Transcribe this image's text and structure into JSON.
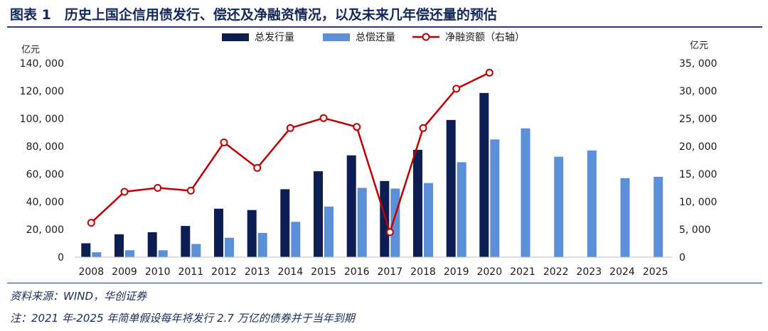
{
  "figure": {
    "title": "图表 1　历史上国企信用债发行、偿还及净融资情况，以及未来几年偿还量的预估",
    "source": "资料来源：WIND，华创证券",
    "note": "注：2021 年-2025 年简单假设每年将发行 2.7 万亿的债券并于当年到期"
  },
  "chart_data": {
    "type": "bar",
    "categories": [
      "2008",
      "2009",
      "2010",
      "2011",
      "2012",
      "2013",
      "2014",
      "2015",
      "2016",
      "2017",
      "2018",
      "2019",
      "2020",
      "2021",
      "2022",
      "2023",
      "2024",
      "2025"
    ],
    "series": [
      {
        "name": "总发行量",
        "type": "bar",
        "axis": "left",
        "color": "#0d1e52",
        "values": [
          10000,
          16500,
          18000,
          22500,
          35000,
          34000,
          49000,
          62000,
          73500,
          55000,
          77500,
          99000,
          118500,
          null,
          null,
          null,
          null,
          null
        ]
      },
      {
        "name": "总偿还量",
        "type": "bar",
        "axis": "left",
        "color": "#5b8fd8",
        "values": [
          3500,
          5000,
          5000,
          9500,
          14000,
          17500,
          25500,
          36500,
          50000,
          49500,
          53500,
          68500,
          85000,
          93000,
          72500,
          77000,
          57000,
          58000
        ]
      },
      {
        "name": "净融资额（右轴）",
        "type": "line",
        "axis": "right",
        "color": "#c00000",
        "values": [
          6200,
          11800,
          12500,
          12000,
          20700,
          16100,
          23300,
          25100,
          23500,
          4500,
          23300,
          30400,
          33300,
          null,
          null,
          null,
          null,
          null
        ]
      }
    ],
    "left_axis": {
      "unit": "亿元",
      "ylim": [
        0,
        140000
      ],
      "ticks": [
        "0",
        "20, 000",
        "40, 000",
        "60, 000",
        "80, 000",
        "100, 000",
        "120, 000",
        "140, 000"
      ]
    },
    "right_axis": {
      "unit": "亿元",
      "ylim": [
        0,
        35000
      ],
      "ticks": [
        "0",
        "5, 000",
        "10, 000",
        "15, 000",
        "20, 000",
        "25, 000",
        "30, 000",
        "35, 000"
      ]
    },
    "legend_position": "top"
  }
}
